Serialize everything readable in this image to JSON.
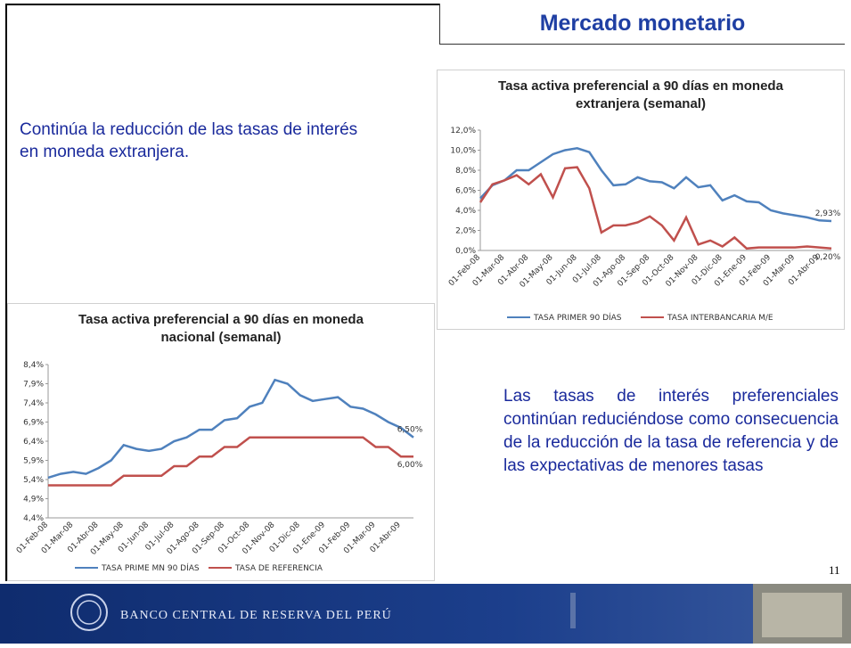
{
  "header": {
    "title": "Mercado monetario"
  },
  "texts": {
    "intro": "Continúa la reducción de las tasas de interés en moneda extranjera.",
    "body": "Las tasas de interés preferenciales continúan reduciéndose como consecuencia de la reducción de la tasa de referencia y de las expectativas de menores tasas",
    "page_number": "11"
  },
  "footer": {
    "institution": "BANCO CENTRAL DE RESERVA DEL PERÚ"
  },
  "chart_data": [
    {
      "type": "line",
      "title": "Tasa activa preferencial a 90 días en moneda extranjera (semanal)",
      "categories": [
        "01-Feb-08",
        null,
        "01-Mar-08",
        null,
        "01-Abr-08",
        null,
        "01-May-08",
        null,
        "01-Jun-08",
        null,
        "01-Jul-08",
        null,
        "01-Ago-08",
        null,
        "01-Sep-08",
        null,
        "01-Oct-08",
        null,
        "01-Nov-08",
        null,
        "01-Dic-08",
        null,
        "01-Ene-09",
        null,
        "01-Feb-09",
        null,
        "01-Mar-09",
        null,
        "01-Abr-09",
        null
      ],
      "ylim": [
        0,
        12
      ],
      "yticks": [
        {
          "value": 0,
          "label": "0,0%"
        },
        {
          "value": 2,
          "label": "2,0%"
        },
        {
          "value": 4,
          "label": "4,0%"
        },
        {
          "value": 6,
          "label": "6,0%"
        },
        {
          "value": 8,
          "label": "8,0%"
        },
        {
          "value": 10,
          "label": "10,0%"
        },
        {
          "value": 12,
          "label": "12,0%"
        }
      ],
      "series": [
        {
          "name": "TASA PRIMER 90 DÍAS",
          "color": "#4f81bd",
          "values": [
            5.2,
            6.5,
            7.0,
            8.0,
            8.0,
            8.8,
            9.6,
            10.0,
            10.2,
            9.8,
            8.0,
            6.5,
            6.6,
            7.3,
            6.9,
            6.8,
            6.2,
            7.3,
            6.3,
            6.5,
            5.0,
            5.5,
            4.9,
            4.8,
            4.0,
            3.7,
            3.5,
            3.3,
            3.0,
            2.93
          ],
          "value_labels": [
            null,
            null,
            null,
            null,
            null,
            null,
            null,
            null,
            null,
            null,
            null,
            null,
            null,
            null,
            null,
            null,
            null,
            null,
            null,
            null,
            null,
            null,
            null,
            null,
            null,
            null,
            null,
            null,
            null,
            "2,93%"
          ]
        },
        {
          "name": "TASA INTERBANCARIA M/E",
          "color": "#c0504d",
          "values": [
            4.8,
            6.6,
            7.0,
            7.5,
            6.6,
            7.6,
            5.3,
            8.2,
            8.3,
            6.2,
            1.8,
            2.5,
            2.5,
            2.8,
            3.4,
            2.5,
            1.0,
            3.3,
            0.6,
            1.0,
            0.4,
            1.3,
            0.2,
            0.3,
            0.3,
            0.3,
            0.3,
            0.4,
            0.3,
            0.2
          ],
          "value_labels": [
            null,
            null,
            null,
            null,
            null,
            null,
            null,
            null,
            null,
            null,
            null,
            null,
            null,
            null,
            null,
            null,
            null,
            null,
            null,
            null,
            null,
            null,
            null,
            null,
            null,
            null,
            null,
            null,
            null,
            "0,20%"
          ]
        }
      ]
    },
    {
      "type": "line",
      "title": "Tasa activa preferencial a 90 días en moneda nacional (semanal)",
      "categories": [
        "01-Feb-08",
        null,
        "01-Mar-08",
        null,
        "01-Abr-08",
        null,
        "01-May-08",
        null,
        "01-Jun-08",
        null,
        "01-Jul-08",
        null,
        "01-Ago-08",
        null,
        "01-Sep-08",
        null,
        "01-Oct-08",
        null,
        "01-Nov-08",
        null,
        "01-Dic-08",
        null,
        "01-Ene-09",
        null,
        "01-Feb-09",
        null,
        "01-Mar-09",
        null,
        "01-Abr-09",
        null
      ],
      "ylim": [
        4.4,
        8.4
      ],
      "yticks": [
        {
          "value": 4.4,
          "label": "4,4%"
        },
        {
          "value": 4.9,
          "label": "4,9%"
        },
        {
          "value": 5.4,
          "label": "5,4%"
        },
        {
          "value": 5.9,
          "label": "5,9%"
        },
        {
          "value": 6.4,
          "label": "6,4%"
        },
        {
          "value": 6.9,
          "label": "6,9%"
        },
        {
          "value": 7.4,
          "label": "7,4%"
        },
        {
          "value": 7.9,
          "label": "7,9%"
        },
        {
          "value": 8.4,
          "label": "8,4%"
        }
      ],
      "series": [
        {
          "name": "TASA PRIME MN 90 DÍAS",
          "color": "#4f81bd",
          "values": [
            5.45,
            5.55,
            5.6,
            5.55,
            5.7,
            5.9,
            6.3,
            6.2,
            6.15,
            6.2,
            6.4,
            6.5,
            6.7,
            6.7,
            6.95,
            7.0,
            7.3,
            7.4,
            8.0,
            7.9,
            7.6,
            7.45,
            7.5,
            7.55,
            7.3,
            7.25,
            7.1,
            6.9,
            6.75,
            6.5
          ],
          "value_labels": [
            null,
            null,
            null,
            null,
            null,
            null,
            null,
            null,
            null,
            null,
            null,
            null,
            null,
            null,
            null,
            null,
            null,
            null,
            null,
            null,
            null,
            null,
            null,
            null,
            null,
            null,
            null,
            null,
            null,
            "6,50%"
          ]
        },
        {
          "name": "TASA DE REFERENCIA",
          "color": "#c0504d",
          "values": [
            5.25,
            5.25,
            5.25,
            5.25,
            5.25,
            5.25,
            5.5,
            5.5,
            5.5,
            5.5,
            5.75,
            5.75,
            6.0,
            6.0,
            6.25,
            6.25,
            6.5,
            6.5,
            6.5,
            6.5,
            6.5,
            6.5,
            6.5,
            6.5,
            6.5,
            6.5,
            6.25,
            6.25,
            6.0,
            6.0
          ],
          "value_labels": [
            null,
            null,
            null,
            null,
            null,
            null,
            null,
            null,
            null,
            null,
            null,
            null,
            null,
            null,
            null,
            null,
            null,
            null,
            null,
            null,
            null,
            null,
            null,
            null,
            null,
            null,
            null,
            null,
            null,
            "6,00%"
          ]
        }
      ]
    }
  ]
}
